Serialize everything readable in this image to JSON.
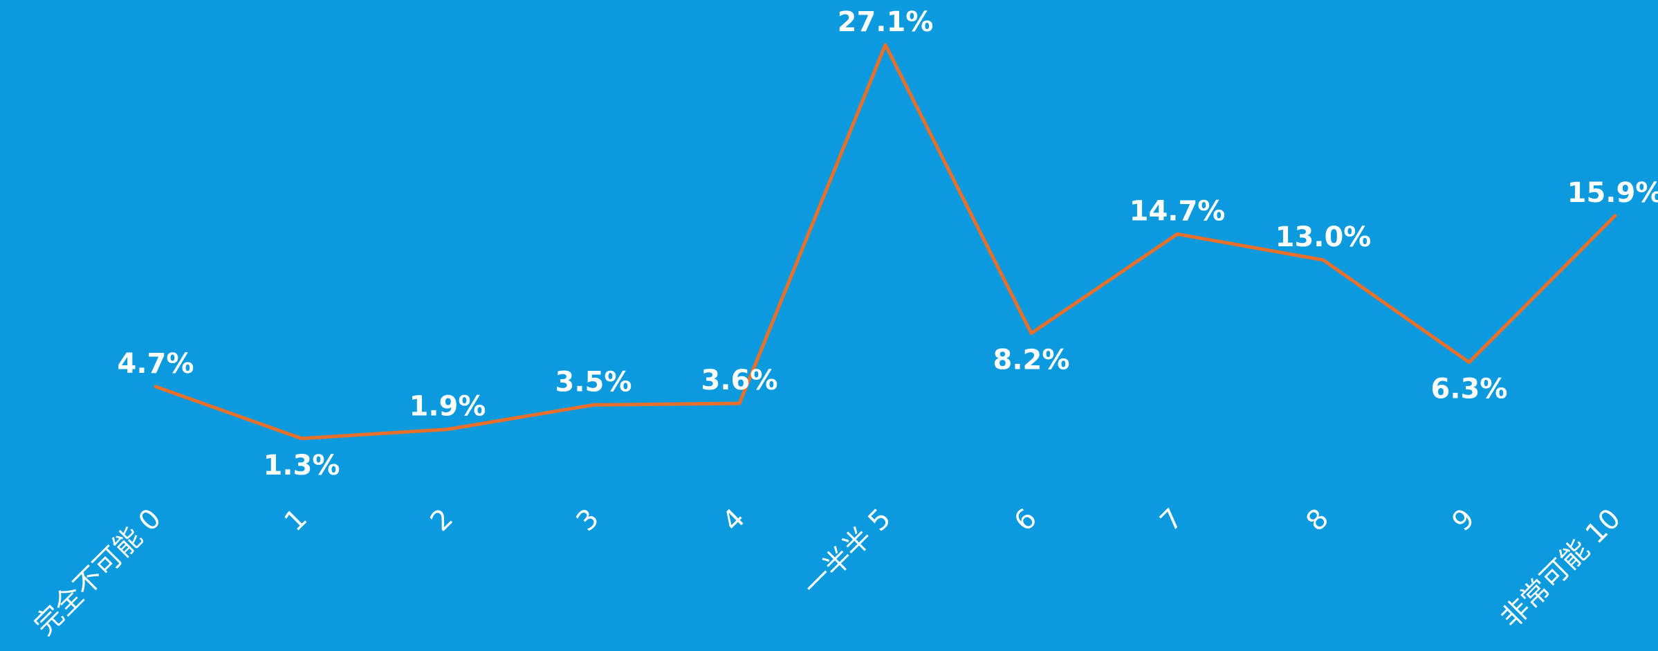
{
  "chart_data": {
    "type": "line",
    "categories": [
      "完全不可能 0",
      "1",
      "2",
      "3",
      "4",
      "一半半 5",
      "6",
      "7",
      "8",
      "9",
      "非常可能 10"
    ],
    "series": [
      {
        "values": [
          4.7,
          1.3,
          1.9,
          3.5,
          3.6,
          27.1,
          8.2,
          14.7,
          13.0,
          6.3,
          15.9
        ],
        "labels": [
          "4.7%",
          "1.3%",
          "1.9%",
          "3.5%",
          "3.6%",
          "27.1%",
          "8.2%",
          "14.7%",
          "13.0%",
          "6.3%",
          "15.9%"
        ]
      }
    ],
    "title": "",
    "xlabel": "",
    "ylabel": "",
    "ylim": [
      0,
      28
    ],
    "grid": false,
    "legend": "none",
    "colors": {
      "background": "#0B9ADE",
      "line": "#E8702A",
      "text": "#FFFFFF"
    }
  }
}
